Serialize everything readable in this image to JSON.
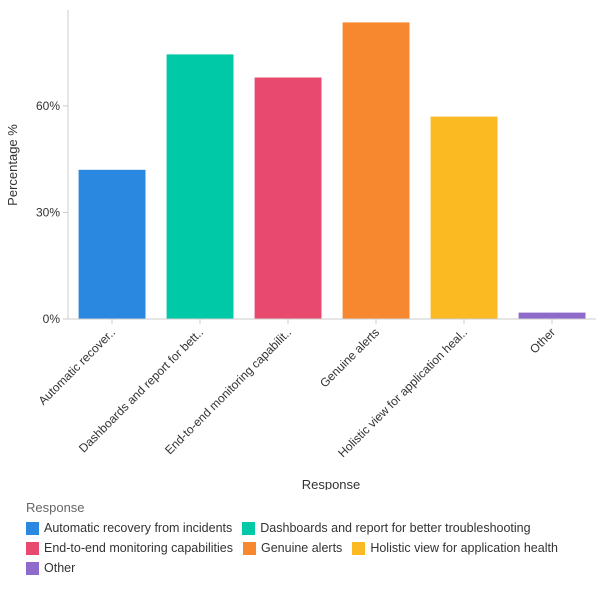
{
  "chart_data": {
    "type": "bar",
    "xlabel": "Response",
    "ylabel": "Percentage %",
    "ylim": [
      0,
      87
    ],
    "yticks": [
      0,
      30,
      60
    ],
    "ytick_labels": [
      "0%",
      "30%",
      "60%"
    ],
    "grid": false,
    "legend_position": "bottom",
    "legend_title": "Response",
    "categories": [
      "Automatic recovery from incidents",
      "Dashboards and report for better troubleshooting",
      "End-to-end monitoring capabilities",
      "Genuine alerts",
      "Holistic view for application health",
      "Other"
    ],
    "tick_labels": [
      "Automatic recover..",
      "Dashboards and report for bett..",
      "End-to-end monitoring capabilit..",
      "Genuine alerts",
      "Holistic view for application heal..",
      "Other"
    ],
    "values": [
      42,
      74.5,
      68,
      83.5,
      57,
      1.8
    ],
    "colors": [
      "#2b88e0",
      "#00c9a7",
      "#e84a6f",
      "#f7882f",
      "#fbba22",
      "#8e6bcb"
    ]
  }
}
